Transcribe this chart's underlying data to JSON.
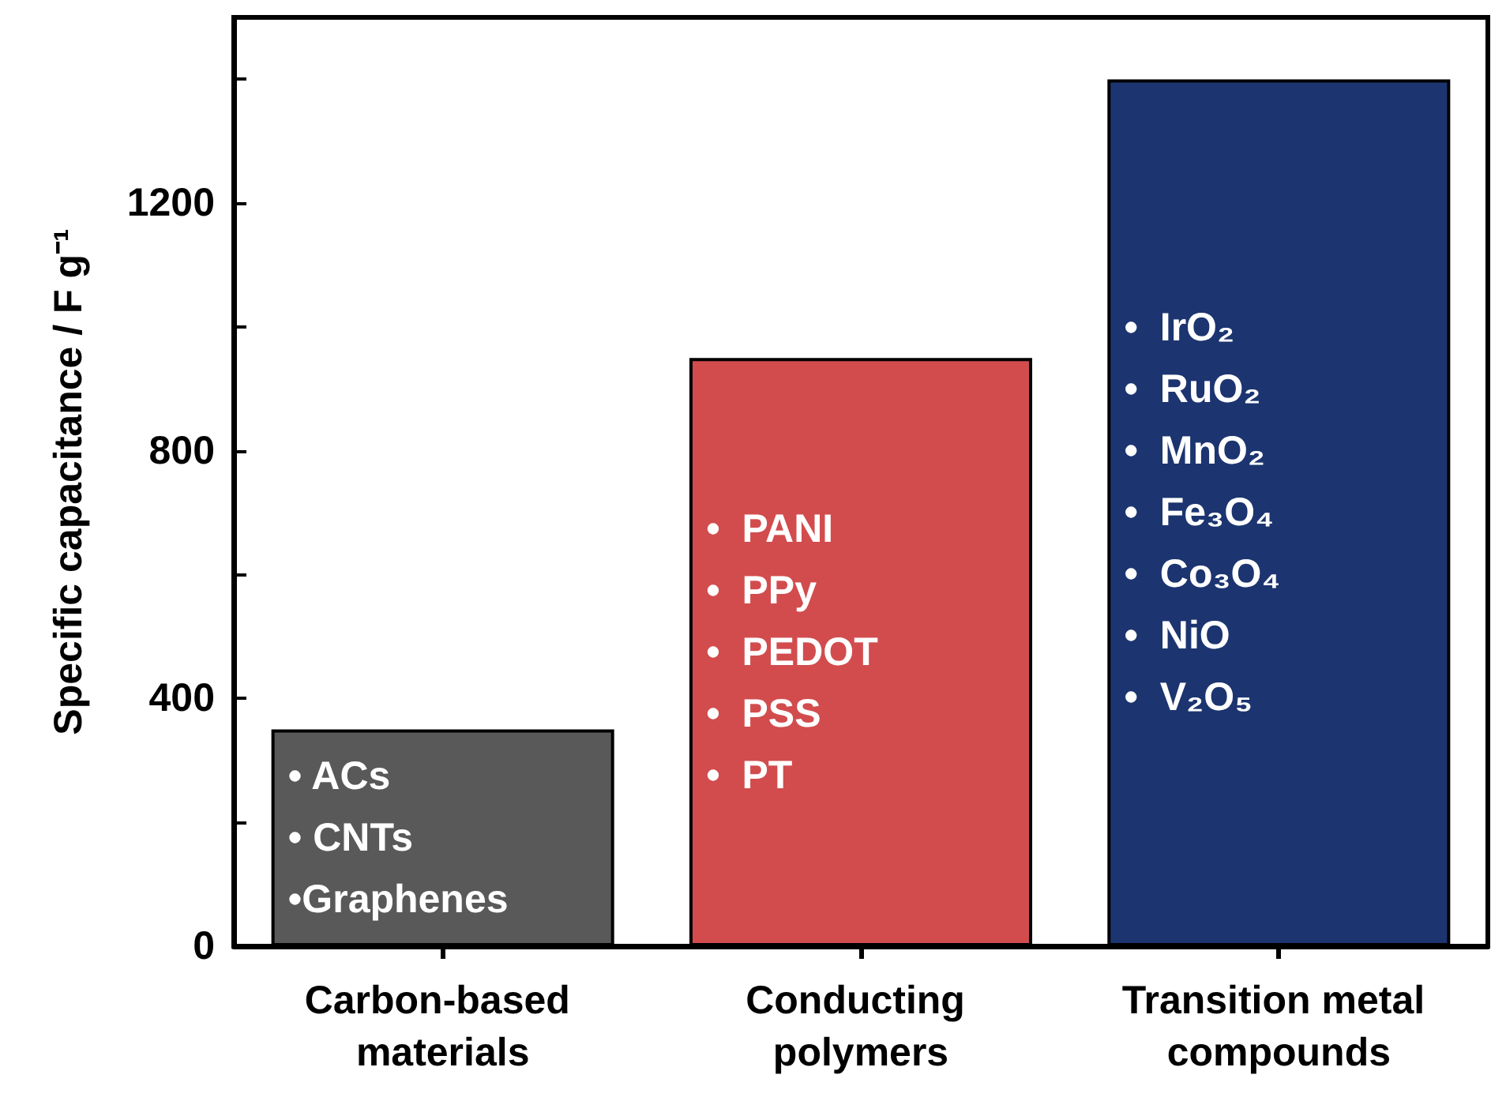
{
  "chart_data": {
    "type": "bar",
    "ylabel": "Specific capacitance / F g⁻¹",
    "categories": [
      "Carbon-based materials",
      "Conducting polymers",
      "Transition metal compounds"
    ],
    "values": [
      350,
      950,
      1400
    ],
    "colors": [
      "#595959",
      "#d24c4e",
      "#1c3570"
    ],
    "ylim": [
      0,
      1500
    ],
    "yticks": [
      0,
      {
        "value": 200,
        "label": null
      },
      400,
      {
        "value": 600,
        "label": null
      },
      800,
      {
        "value": 1000,
        "label": null
      },
      1200,
      {
        "value": 1400,
        "label": null
      }
    ],
    "grid": false,
    "annotations": [
      "• ACs\n• CNTs\n•Graphenes",
      "•  PANI\n•  PPy\n•  PEDOT\n•  PSS\n•  PT",
      "•  IrO₂\n•  RuO₂\n•  MnO₂\n•  Fe₃O₄\n•  Co₃O₄\n•  NiO\n•  V₂O₅"
    ]
  }
}
